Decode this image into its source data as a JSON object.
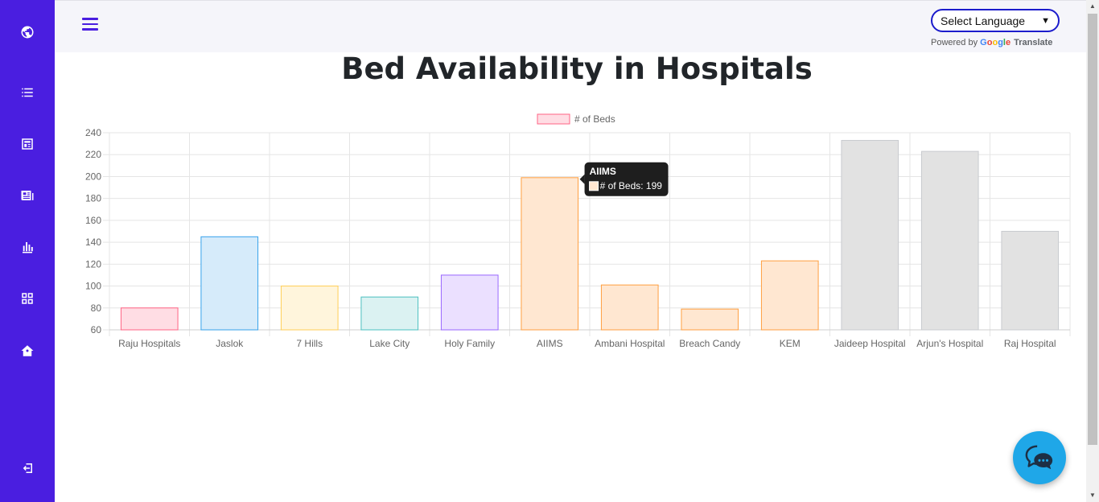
{
  "sidebar": {
    "items": [
      {
        "icon": "globe-icon"
      },
      {
        "icon": "list-icon"
      },
      {
        "icon": "newspaper-icon"
      },
      {
        "icon": "news-icon"
      },
      {
        "icon": "bar-chart-icon"
      },
      {
        "icon": "grid-icon"
      },
      {
        "icon": "home-icon"
      }
    ],
    "logout_icon": "logout-icon",
    "bg_color": "#4a1ee0"
  },
  "header": {
    "language_select": "Select Language",
    "powered_by": "Powered by",
    "google": "Google",
    "translate": "Translate"
  },
  "page": {
    "title": "Bed Availability in Hospitals"
  },
  "chart_data": {
    "type": "bar",
    "legend": "# of Beds",
    "legend_position": "top",
    "categories": [
      "Raju Hospitals",
      "Jaslok",
      "7 Hills",
      "Lake City",
      "Holy Family",
      "AIIMS",
      "Ambani Hospital",
      "Breach Candy",
      "KEM",
      "Jaideep Hospital",
      "Arjun's Hospital",
      "Raj Hospital"
    ],
    "values": [
      80,
      145,
      100,
      90,
      110,
      199,
      101,
      79,
      123,
      233,
      223,
      150
    ],
    "ylim": [
      60,
      240
    ],
    "yticks": [
      60,
      80,
      100,
      120,
      140,
      160,
      180,
      200,
      220,
      240
    ],
    "grid": true,
    "fill_colors": [
      "#ffdde4",
      "#d6ebfa",
      "#fff5dc",
      "#dbf2f2",
      "#ebe0ff",
      "#ffe7d1",
      "#ffe7d1",
      "#ffe7d1",
      "#ffe7d1",
      "#e2e2e2",
      "#e2e2e2",
      "#e2e2e2"
    ],
    "border_colors": [
      "#ff6384",
      "#36a2eb",
      "#ffce56",
      "#4bc0c0",
      "#9966ff",
      "#ff9f40",
      "#ff9f40",
      "#ff9f40",
      "#ff9f40",
      "#c9cbcf",
      "#c9cbcf",
      "#c9cbcf"
    ],
    "tooltip": {
      "index": 5,
      "title": "AIIMS",
      "label": "# of Beds: 199"
    }
  },
  "chat_button": {
    "icon": "chat-icon",
    "color": "#1fa7e8"
  }
}
